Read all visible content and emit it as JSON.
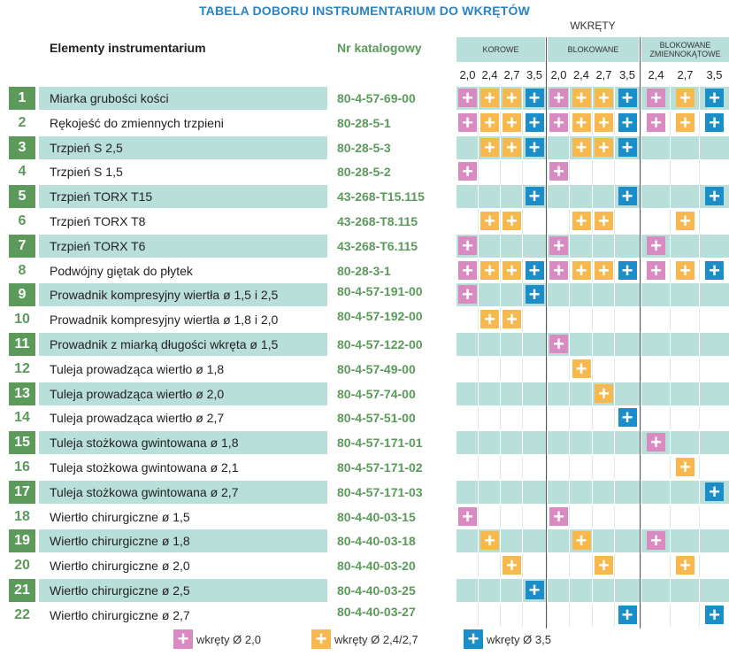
{
  "title": "TABELA DOBORU INSTRUMENTARIUM DO WKRĘTÓW",
  "wkrety_label": "WKRĘTY",
  "column_headers": {
    "elements": "Elementy instrumentarium",
    "catalog": "Nr katalogowy"
  },
  "groups": [
    {
      "label": "KOROWE",
      "sizes": [
        "2,0",
        "2,4",
        "2,7",
        "3,5"
      ]
    },
    {
      "label": "BLOKOWANE",
      "sizes": [
        "2,0",
        "2,4",
        "2,7",
        "3,5"
      ]
    },
    {
      "label": "BLOKOWANE ZMIENNOKĄTOWE",
      "sizes": [
        "2,4",
        "2,7",
        "3,5"
      ]
    }
  ],
  "colors": {
    "green": "#5b9a5a",
    "row_shade": "#b9dfda",
    "pink": "#d98ac0",
    "orange": "#f7b84d",
    "blue": "#1b8ec9",
    "title_blue": "#2a83c4"
  },
  "marker_symbol": "+",
  "rows": [
    {
      "num": "1",
      "name": "Miarka grubości kości",
      "catalog": "80-4-57-69-00",
      "marks": "poobpoobpob"
    },
    {
      "num": "2",
      "name": "Rękojeść do zmiennych trzpieni",
      "catalog": "80-28-5-1",
      "marks": "poobpoobpob"
    },
    {
      "num": "3",
      "name": "Trzpień S 2,5",
      "catalog": "80-28-5-3",
      "marks": ".oob.oob..."
    },
    {
      "num": "4",
      "name": "Trzpień S 1,5",
      "catalog": "80-28-5-2",
      "marks": "p...p......"
    },
    {
      "num": "5",
      "name": "Trzpień TORX T15",
      "catalog": "43-268-T15.115",
      "marks": "...b...b..b"
    },
    {
      "num": "6",
      "name": "Trzpień TORX T8",
      "catalog": "43-268-T8.115",
      "marks": ".oo..oo..o."
    },
    {
      "num": "7",
      "name": "Trzpień TORX T6",
      "catalog": "43-268-T6.115",
      "marks": "p...p...p.."
    },
    {
      "num": "8",
      "name": "Podwójny giętak do płytek",
      "catalog": "80-28-3-1",
      "marks": "poobpoobpob"
    },
    {
      "num": "9",
      "name": "Prowadnik kompresyjny wiertła ø 1,5 i 2,5",
      "catalog": "80-4-57-191-00",
      "marks": "p..b......."
    },
    {
      "num": "10",
      "name": "Prowadnik kompresyjny wiertła ø 1,8 i 2,0",
      "catalog": "80-4-57-192-00",
      "marks": ".oo........"
    },
    {
      "num": "11",
      "name": "Prowadnik z miarką długości wkręta ø 1,5",
      "catalog": "80-4-57-122-00",
      "marks": "....p......"
    },
    {
      "num": "12",
      "name": "Tuleja prowadząca wiertło ø 1,8",
      "catalog": "80-4-57-49-00",
      "marks": ".....o....."
    },
    {
      "num": "13",
      "name": "Tuleja prowadząca wiertło ø 2,0",
      "catalog": "80-4-57-74-00",
      "marks": "......o...."
    },
    {
      "num": "14",
      "name": "Tuleja prowadząca wiertło ø 2,7",
      "catalog": "80-4-57-51-00",
      "marks": ".......b..."
    },
    {
      "num": "15",
      "name": "Tuleja stożkowa gwintowana ø 1,8",
      "catalog": "80-4-57-171-01",
      "marks": "........p.."
    },
    {
      "num": "16",
      "name": "Tuleja stożkowa gwintowana ø 2,1",
      "catalog": "80-4-57-171-02",
      "marks": ".........o."
    },
    {
      "num": "17",
      "name": "Tuleja stożkowa gwintowana ø 2,7",
      "catalog": "80-4-57-171-03",
      "marks": "..........b"
    },
    {
      "num": "18",
      "name": "Wiertło chirurgiczne ø 1,5",
      "catalog": "80-4-40-03-15",
      "marks": "p...p......"
    },
    {
      "num": "19",
      "name": "Wiertło chirurgiczne ø 1,8",
      "catalog": "80-4-40-03-18",
      "marks": ".o...o..p.."
    },
    {
      "num": "20",
      "name": "Wiertło chirurgiczne ø 2,0",
      "catalog": "80-4-40-03-20",
      "marks": "..o...o..o."
    },
    {
      "num": "21",
      "name": "Wiertło chirurgiczne ø 2,5",
      "catalog": "80-4-40-03-25",
      "marks": "...b......."
    },
    {
      "num": "22",
      "name": "Wiertło chirurgiczne ø 2,7",
      "catalog": "80-4-40-03-27",
      "marks": ".......b..b"
    }
  ],
  "legend": [
    {
      "color": "pink",
      "label": "wkręty Ø 2,0"
    },
    {
      "color": "orange",
      "label": "wkręty Ø 2,4/2,7"
    },
    {
      "color": "blue",
      "label": "wkręty Ø 3,5"
    }
  ]
}
